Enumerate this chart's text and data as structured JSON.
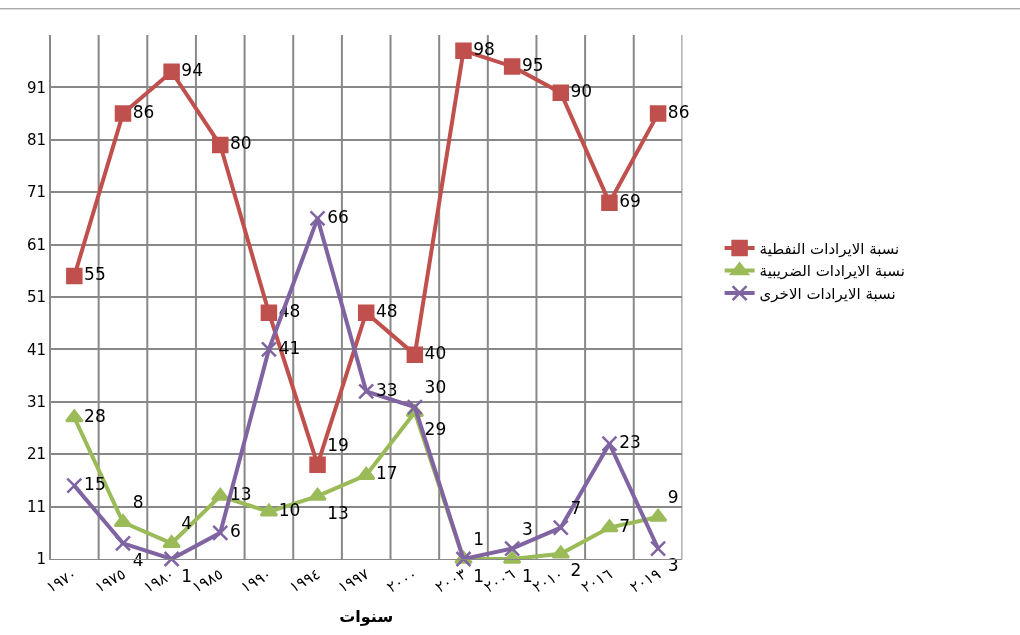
{
  "chart_data": {
    "type": "line",
    "xlabel": "سنوات",
    "categories": [
      "١٩٧٠",
      "١٩٧٥",
      "١٩٨٠",
      "١٩٨٥",
      "١٩٩٠",
      "١٩٩٤",
      "١٩٩٧",
      "٢٠٠٠",
      "٢٠٠٣",
      "٢٠٠٦",
      "٢٠١٠",
      "٢٠١٦",
      "٢٠١٩"
    ],
    "series": [
      {
        "name": "نسبة الايرادات النفطية",
        "color": "#c0504d",
        "marker": "square",
        "values": [
          55,
          86,
          94,
          80,
          48,
          19,
          48,
          40,
          98,
          95,
          90,
          69,
          86
        ]
      },
      {
        "name": "نسبة الايرادات الضريبية",
        "color": "#9bbb59",
        "marker": "triangle",
        "values": [
          28,
          8,
          4,
          13,
          10,
          13,
          17,
          29,
          1,
          1,
          2,
          7,
          9
        ]
      },
      {
        "name": "نسبة الايرادات الاخرى",
        "color": "#8064a2",
        "marker": "cross",
        "values": [
          15,
          4,
          1,
          6,
          41,
          66,
          33,
          30,
          1,
          3,
          7,
          23,
          3
        ]
      }
    ],
    "ylim": [
      1,
      101
    ],
    "yticks": [
      1,
      11,
      21,
      31,
      41,
      51,
      61,
      71,
      81,
      91
    ],
    "grid": true,
    "legend": "right",
    "data_labels": true
  }
}
